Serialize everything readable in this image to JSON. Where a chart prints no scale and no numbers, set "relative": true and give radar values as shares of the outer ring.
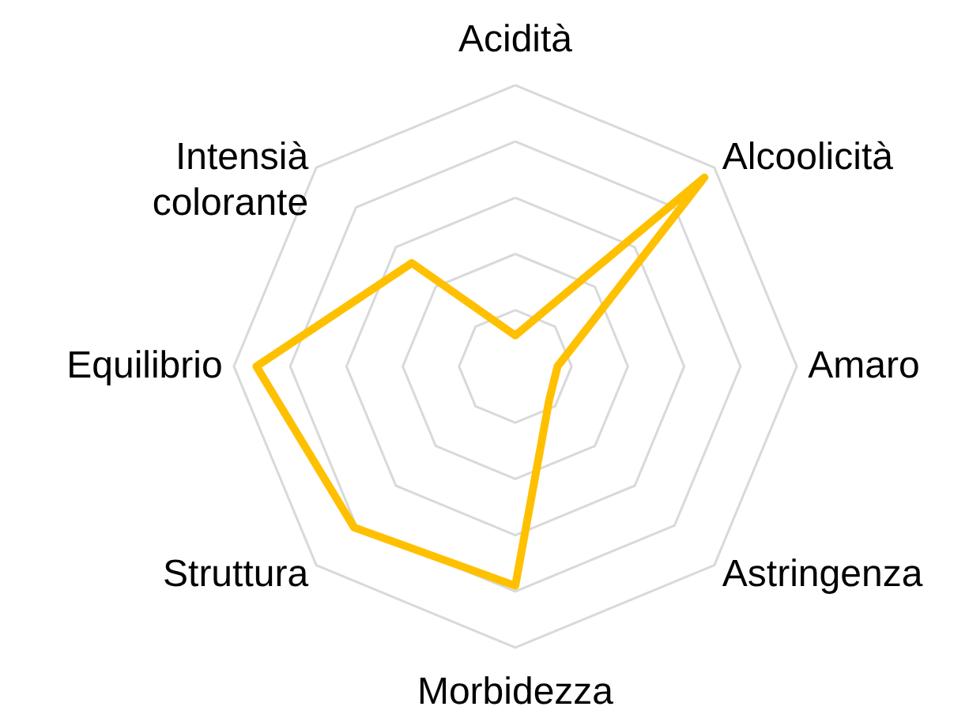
{
  "chart_data": {
    "type": "radar",
    "relative": true,
    "grid": true,
    "categories": [
      "Acidità",
      "Alcoolicità",
      "Amaro",
      "Astringenza",
      "Morbidezza",
      "Struttura",
      "Equilibrio",
      "Intensià colorante"
    ],
    "series": [
      {
        "color": "#ffc000",
        "values": [
          0.11,
          0.95,
          0.15,
          0.17,
          0.78,
          0.81,
          0.92,
          0.52
        ]
      }
    ]
  }
}
